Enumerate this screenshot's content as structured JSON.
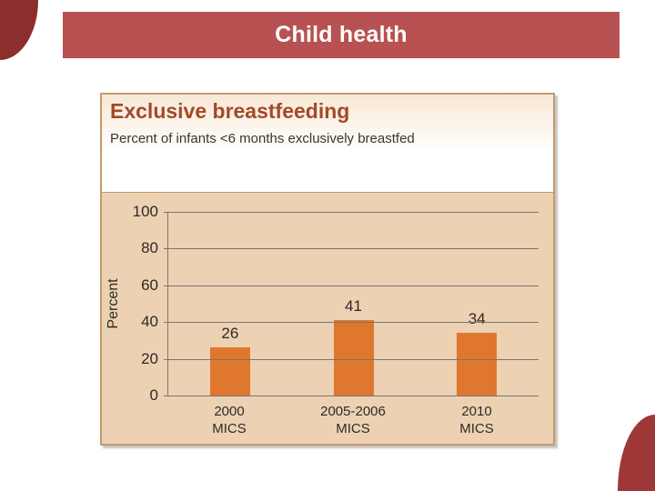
{
  "slide": {
    "title": "Child health"
  },
  "chart_data": {
    "type": "bar",
    "title": "Exclusive breastfeeding",
    "subtitle": "Percent of infants <6 months exclusively breastfed",
    "categories": [
      [
        "2000",
        "MICS"
      ],
      [
        "2005-2006",
        "MICS"
      ],
      [
        "2010",
        "MICS"
      ]
    ],
    "values": [
      26,
      41,
      34
    ],
    "data_labels": [
      "26",
      "41",
      "34"
    ],
    "xlabel": "",
    "ylabel": "Percent",
    "ylim": [
      0,
      100
    ],
    "yticks": [
      0,
      20,
      40,
      60,
      80,
      100
    ],
    "grid": true,
    "legend": false,
    "bar_color": "#e0772f"
  },
  "colors": {
    "accent_red": "#b85152",
    "corner_maroon_top": "#8d2e2e",
    "corner_maroon_bottom": "#9e3737",
    "panel_border": "#c49a6e",
    "panel_body_bg": "#edd1b3",
    "header_gradient_top": "#f8e8d5",
    "chart_title_brown": "#a34a28",
    "bar_orange": "#e0772f",
    "gridline_gray": "#7a756e",
    "text_dark": "#2e2a25"
  }
}
